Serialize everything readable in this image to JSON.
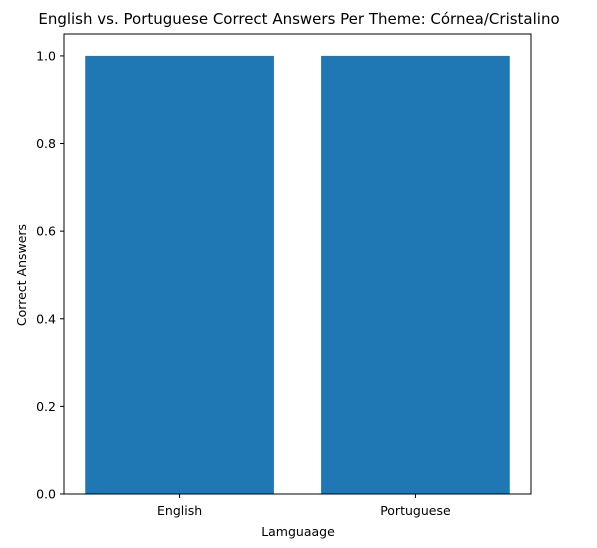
{
  "chart_data": {
    "type": "bar",
    "title": "English vs. Portuguese Correct Answers Per Theme: Córnea/Cristalino",
    "xlabel": "Lamguaage",
    "ylabel": "Correct Answers",
    "categories": [
      "English",
      "Portuguese"
    ],
    "values": [
      1.0,
      1.0
    ],
    "ylim": [
      0,
      1.05
    ],
    "yticks": [
      0.0,
      0.2,
      0.4,
      0.6,
      0.8,
      1.0
    ],
    "ytick_labels": [
      "0.0",
      "0.2",
      "0.4",
      "0.6",
      "0.8",
      "1.0"
    ],
    "grid": false,
    "bar_color": "#1f77b4"
  }
}
